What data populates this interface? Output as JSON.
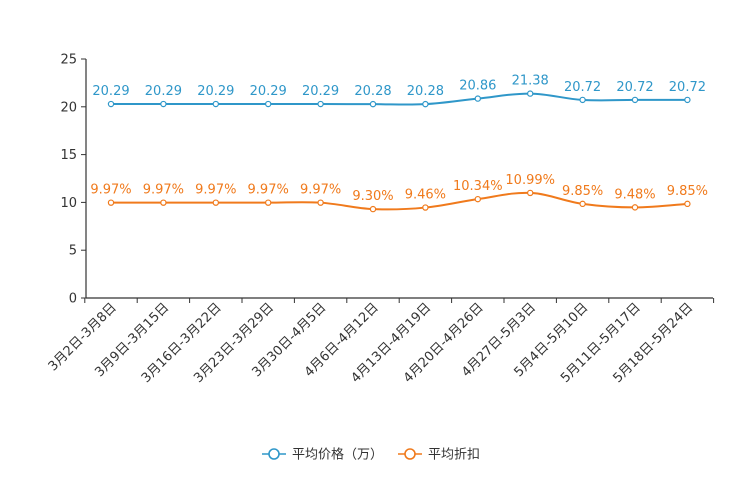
{
  "chart_data": {
    "type": "line",
    "title": "",
    "xlabel": "",
    "ylabel": "",
    "ylim": [
      0,
      25
    ],
    "yticks": [
      0,
      5,
      10,
      15,
      20,
      25
    ],
    "categories": [
      "3月2日-3月8日",
      "3月9日-3月15日",
      "3月16日-3月22日",
      "3月23日-3月29日",
      "3月30日-4月5日",
      "4月6日-4月12日",
      "4月13日-4月19日",
      "4月20日-4月26日",
      "4月27日-5月3日",
      "5月4日-5月10日",
      "5月11日-5月17日",
      "5月18日-5月24日"
    ],
    "series": [
      {
        "name": "平均价格（万）",
        "color": "#2f97c9",
        "values": [
          20.29,
          20.29,
          20.29,
          20.29,
          20.29,
          20.28,
          20.28,
          20.86,
          21.38,
          20.72,
          20.72,
          20.72
        ],
        "labels": [
          "20.29",
          "20.29",
          "20.29",
          "20.29",
          "20.29",
          "20.28",
          "20.28",
          "20.86",
          "21.38",
          "20.72",
          "20.72",
          "20.72"
        ]
      },
      {
        "name": "平均折扣",
        "color": "#f07a1c",
        "values": [
          9.97,
          9.97,
          9.97,
          9.97,
          9.97,
          9.3,
          9.46,
          10.34,
          10.99,
          9.85,
          9.48,
          9.85
        ],
        "labels": [
          "9.97%",
          "9.97%",
          "9.97%",
          "9.97%",
          "9.97%",
          "9.30%",
          "9.46%",
          "10.34%",
          "10.99%",
          "9.85%",
          "9.48%",
          "9.85%"
        ]
      }
    ],
    "legend_position": "bottom-center",
    "grid": false
  }
}
